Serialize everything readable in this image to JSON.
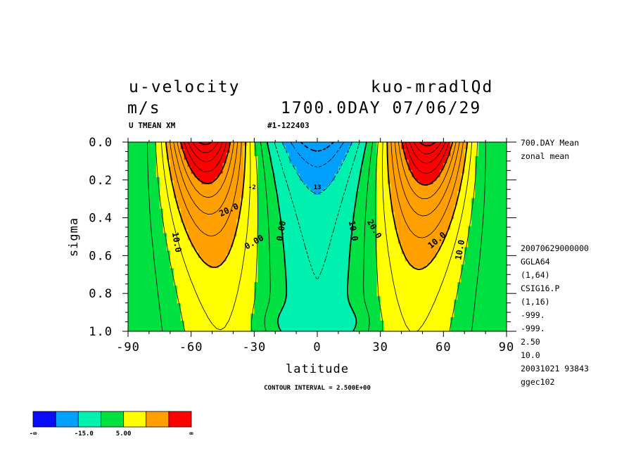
{
  "header": {
    "variable": "u-velocity",
    "unit": "m/s",
    "experiment": "kuo-mradlQd",
    "time": "1700.0DAY 07/06/29",
    "sub_left": "U TMEAN XM",
    "sub_mid": "#1-122403"
  },
  "side_info": {
    "top": [
      "700.DAY Mean",
      "zonal mean"
    ],
    "lines": [
      "20070629000000",
      "GGLA64",
      "(1,64)",
      "CSIG16.P",
      "(1,16)",
      "-999.",
      "-999.",
      "2.50",
      "10.0",
      "20031021  93843",
      "ggec102"
    ]
  },
  "footer": {
    "contour_interval": "CONTOUR INTERVAL = 2.500E+00"
  },
  "colorbar": {
    "colors": [
      "#0a0aff",
      "#00a0ff",
      "#00f0b0",
      "#00e040",
      "#ffff00",
      "#ffa000",
      "#ff0000"
    ],
    "labels": [
      "-∞",
      "-15.0",
      "5.00",
      "∞"
    ]
  },
  "chart_data": {
    "type": "contour",
    "title": "u-velocity",
    "xlabel": "latitude",
    "ylabel": "sigma",
    "xlim": [
      -90,
      90
    ],
    "ylim": [
      1.0,
      0.0
    ],
    "x_ticks": [
      -90,
      -60,
      -30,
      0,
      30,
      60,
      90
    ],
    "x_tick_labels": [
      "-90",
      "-60",
      "-30",
      "0",
      "30",
      "60",
      "90"
    ],
    "y_ticks": [
      0.0,
      0.2,
      0.4,
      0.6,
      0.8,
      1.0
    ],
    "y_tick_labels": [
      "0.0",
      "0.2",
      "0.4",
      "0.6",
      "0.8",
      "1.0"
    ],
    "contour_interval": 2.5,
    "contour_labels": [
      "20.0",
      "10.0",
      "0.00",
      "0.00",
      "10.0",
      "20.0",
      "10.0",
      "10.0",
      "-2",
      "13"
    ],
    "jets": [
      {
        "lat": -56,
        "sigma": 0.05,
        "max_approx": 40
      },
      {
        "lat": 55,
        "sigma": 0.05,
        "max_approx": 40
      }
    ],
    "easterly_min": {
      "lat": 0,
      "sigma": 0.02
    }
  }
}
